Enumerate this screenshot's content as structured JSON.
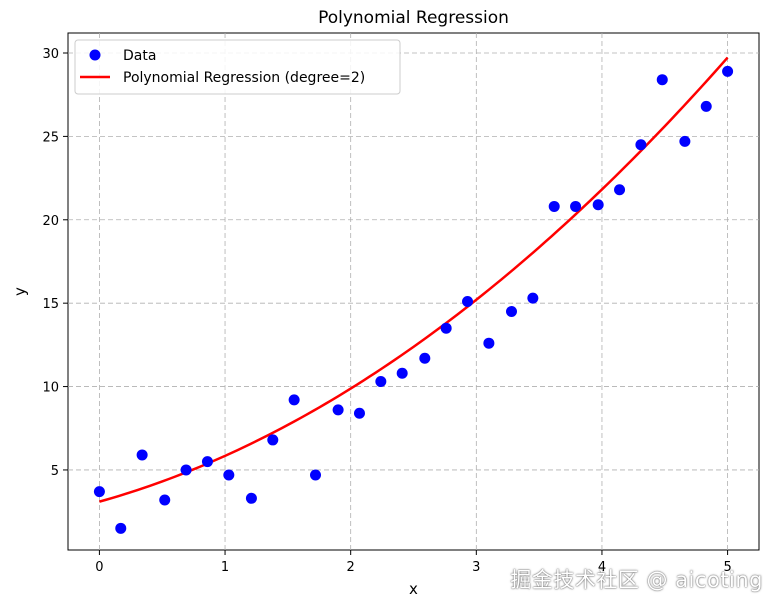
{
  "chart_data": {
    "type": "scatter",
    "title": "Polynomial Regression",
    "xlabel": "x",
    "ylabel": "y",
    "xlim": [
      -0.25,
      5.25
    ],
    "ylim": [
      0.2,
      31.2
    ],
    "xticks": [
      0,
      1,
      2,
      3,
      4,
      5
    ],
    "yticks": [
      5,
      10,
      15,
      20,
      25,
      30
    ],
    "grid": true,
    "legend_position": "top-left",
    "series": [
      {
        "name": "Data",
        "type": "scatter",
        "color": "#0000ff",
        "x": [
          0.0,
          0.17,
          0.34,
          0.52,
          0.69,
          0.86,
          1.03,
          1.21,
          1.38,
          1.55,
          1.72,
          1.9,
          2.07,
          2.24,
          2.41,
          2.59,
          2.76,
          2.93,
          3.1,
          3.28,
          3.45,
          3.62,
          3.79,
          3.97,
          4.14,
          4.31,
          4.48,
          4.66,
          4.83,
          5.0
        ],
        "y": [
          3.7,
          1.5,
          5.9,
          3.2,
          5.0,
          5.5,
          4.7,
          3.3,
          6.8,
          9.2,
          4.7,
          8.6,
          8.4,
          10.3,
          10.8,
          11.7,
          13.5,
          15.1,
          12.6,
          14.5,
          15.3,
          20.8,
          20.8,
          20.9,
          21.8,
          24.5,
          28.4,
          24.7,
          26.8,
          28.9
        ]
      },
      {
        "name": "Polynomial Regression (degree=2)",
        "type": "line",
        "color": "#ff0000",
        "coefficients": [
          3.1,
          2.1,
          0.645
        ]
      }
    ]
  },
  "watermark": "掘金技术社区 @ aicoting"
}
